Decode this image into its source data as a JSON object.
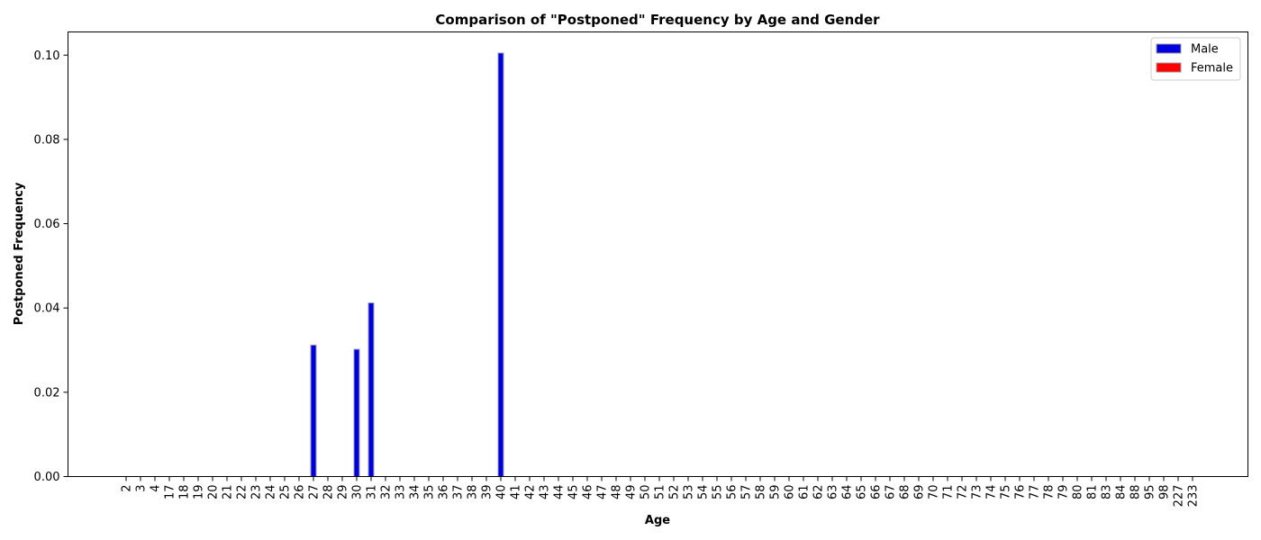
{
  "chart_data": {
    "type": "bar",
    "title": "Comparison of \"Postponed\" Frequency by Age and Gender",
    "xlabel": "Age",
    "ylabel": "Postponed Frequency",
    "ylim": [
      0,
      0.1055
    ],
    "yticks": [
      "0.00",
      "0.02",
      "0.04",
      "0.06",
      "0.08",
      "0.10"
    ],
    "ytick_values": [
      0,
      0.02,
      0.04,
      0.06,
      0.08,
      0.1
    ],
    "grid": false,
    "legend_position": "top-right",
    "categories": [
      "2",
      "3",
      "4",
      "17",
      "18",
      "19",
      "20",
      "21",
      "22",
      "23",
      "24",
      "25",
      "26",
      "27",
      "28",
      "29",
      "30",
      "31",
      "32",
      "33",
      "34",
      "35",
      "36",
      "37",
      "38",
      "39",
      "40",
      "41",
      "42",
      "43",
      "44",
      "45",
      "46",
      "47",
      "48",
      "49",
      "50",
      "51",
      "52",
      "53",
      "54",
      "55",
      "56",
      "57",
      "58",
      "59",
      "60",
      "61",
      "62",
      "63",
      "64",
      "65",
      "66",
      "67",
      "68",
      "69",
      "70",
      "71",
      "72",
      "73",
      "74",
      "75",
      "76",
      "77",
      "78",
      "79",
      "80",
      "81",
      "83",
      "84",
      "88",
      "95",
      "98",
      "227",
      "233"
    ],
    "series": [
      {
        "name": "Male",
        "color": "#0000dd",
        "values": [
          0,
          0,
          0,
          0,
          0,
          0,
          0,
          0,
          0,
          0,
          0,
          0,
          0,
          0.0312,
          0,
          0,
          0.0302,
          0.0412,
          0,
          0,
          0,
          0,
          0,
          0,
          0,
          0,
          0.1005,
          0,
          0,
          0,
          0,
          0,
          0,
          0,
          0,
          0,
          0,
          0,
          0,
          0,
          0,
          0,
          0,
          0,
          0,
          0,
          0,
          0,
          0,
          0,
          0,
          0,
          0,
          0,
          0,
          0,
          0,
          0,
          0,
          0,
          0,
          0,
          0,
          0,
          0,
          0,
          0,
          0,
          0,
          0,
          0,
          0,
          0,
          0,
          0
        ]
      },
      {
        "name": "Female",
        "color": "#ff0000",
        "values": [
          0,
          0,
          0,
          0,
          0,
          0,
          0,
          0,
          0,
          0,
          0,
          0,
          0,
          0,
          0,
          0,
          0,
          0,
          0,
          0,
          0,
          0,
          0,
          0,
          0,
          0,
          0,
          0,
          0,
          0,
          0,
          0,
          0,
          0,
          0,
          0,
          0,
          0,
          0,
          0,
          0,
          0,
          0,
          0,
          0,
          0,
          0,
          0,
          0,
          0,
          0,
          0,
          0,
          0,
          0,
          0,
          0,
          0,
          0,
          0,
          0,
          0,
          0,
          0,
          0,
          0,
          0,
          0,
          0,
          0,
          0,
          0,
          0,
          0,
          0
        ]
      }
    ]
  }
}
